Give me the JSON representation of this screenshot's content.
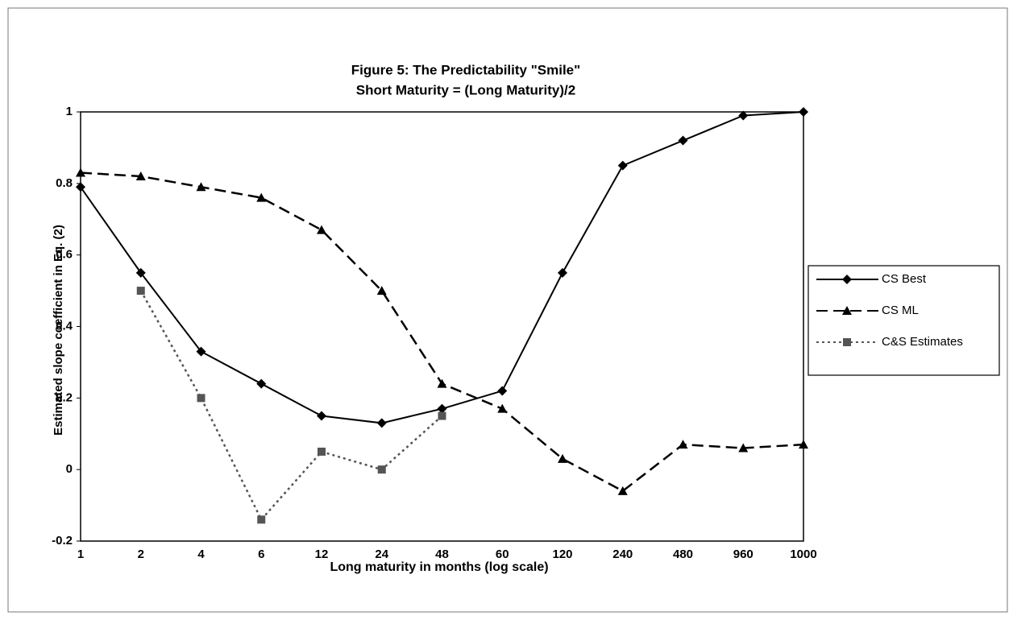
{
  "chart_data": {
    "type": "line",
    "title": "Figure 5:  The Predictability \"Smile\"",
    "subtitle": "Short Maturity = (Long Maturity)/2",
    "x_label": "Long maturity in months (log scale)",
    "y_label": "Estimated slope coefficient in Eq. (2)",
    "categories": [
      "1",
      "2",
      "4",
      "6",
      "12",
      "24",
      "48",
      "60",
      "120",
      "240",
      "480",
      "960",
      "1000"
    ],
    "series": [
      {
        "name": "CS Best",
        "color": "#000000",
        "marker": "diamond",
        "dash": "solid",
        "values": [
          0.79,
          0.55,
          0.33,
          0.24,
          0.15,
          0.13,
          0.17,
          0.22,
          0.55,
          0.85,
          0.92,
          0.99,
          1.0
        ]
      },
      {
        "name": "CS ML",
        "color": "#000000",
        "marker": "triangle",
        "dash": "dashed",
        "values": [
          0.83,
          0.82,
          0.79,
          0.76,
          0.67,
          0.5,
          0.24,
          0.17,
          0.03,
          -0.06,
          0.07,
          0.06,
          0.07
        ]
      },
      {
        "name": "C&S Estimates",
        "color": "#555555",
        "marker": "square",
        "dash": "dotted",
        "values": [
          null,
          0.5,
          0.2,
          -0.14,
          0.05,
          0.0,
          0.15,
          null,
          null,
          null,
          null,
          null,
          null
        ]
      }
    ],
    "ylim": [
      -0.2,
      1
    ],
    "yticks": [
      -0.2,
      0,
      0.2,
      0.4,
      0.6,
      0.8,
      1
    ],
    "grid": false,
    "legend": "right"
  }
}
